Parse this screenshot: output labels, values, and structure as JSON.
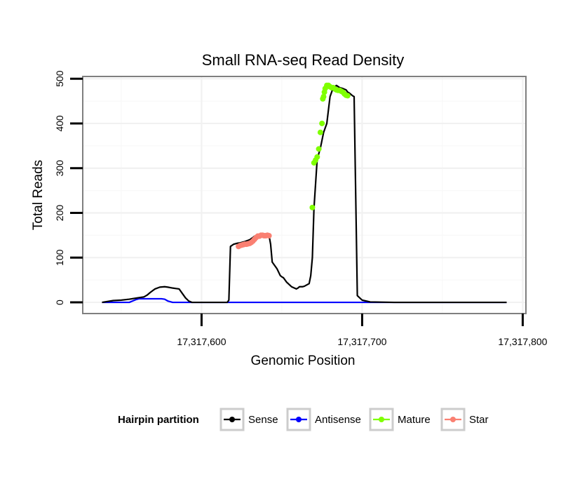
{
  "chart_data": {
    "type": "line",
    "title": "Small RNA-seq Read Density",
    "xlabel": "Genomic Position",
    "ylabel": "Total Reads",
    "xlim": [
      17317526,
      17317802
    ],
    "ylim": [
      -25,
      505
    ],
    "x_ticks": [
      17317600,
      17317700,
      17317800
    ],
    "x_tick_labels": [
      "17,317,600",
      "17,317,700",
      "17,317,800"
    ],
    "y_ticks": [
      0,
      100,
      200,
      300,
      400,
      500
    ],
    "y_tick_labels": [
      "0",
      "100",
      "200",
      "300",
      "400",
      "500"
    ],
    "grid": true,
    "legend": {
      "title": "Hairpin partition",
      "position": "bottom",
      "entries": [
        {
          "label": "Sense",
          "color": "#000000"
        },
        {
          "label": "Antisense",
          "color": "#0000ff"
        },
        {
          "label": "Mature",
          "color": "#7fff00"
        },
        {
          "label": "Star",
          "color": "#fa8072"
        }
      ]
    },
    "series": [
      {
        "name": "Sense",
        "color": "#000000",
        "x": [
          17317538,
          17317545,
          17317550,
          17317555,
          17317560,
          17317564,
          17317566,
          17317568,
          17317571,
          17317574,
          17317577,
          17317579,
          17317582,
          17317584,
          17317586,
          17317588,
          17317590,
          17317592,
          17317594,
          17317600,
          17317610,
          17317616,
          17317617,
          17317618,
          17317620,
          17317622,
          17317624,
          17317627,
          17317630,
          17317632,
          17317633,
          17317634,
          17317636,
          17317638,
          17317640,
          17317642,
          17317643,
          17317644,
          17317647,
          17317649,
          17317650,
          17317651,
          17317653,
          17317656,
          17317659,
          17317660,
          17317661,
          17317662,
          17317663,
          17317664,
          17317665,
          17317666,
          17317667,
          17317668,
          17317669,
          17317670,
          17317672,
          17317674,
          17317676,
          17317678,
          17317680,
          17317682,
          17317684,
          17317686,
          17317688,
          17317690,
          17317691,
          17317692,
          17317693,
          17317694,
          17317695,
          17317697,
          17317700,
          17317705,
          17317720,
          17317750,
          17317790
        ],
        "y": [
          0,
          4,
          5,
          7,
          10,
          12,
          16,
          22,
          30,
          34,
          35,
          34,
          32,
          31,
          30,
          20,
          10,
          3,
          0,
          0,
          0,
          0,
          5,
          125,
          130,
          132,
          133,
          136,
          140,
          145,
          148,
          150,
          150,
          150,
          150,
          150,
          130,
          90,
          75,
          60,
          57,
          55,
          45,
          35,
          30,
          32,
          35,
          35,
          35,
          36,
          38,
          40,
          42,
          60,
          100,
          210,
          320,
          345,
          380,
          400,
          460,
          480,
          485,
          480,
          478,
          475,
          470,
          468,
          465,
          462,
          460,
          15,
          5,
          1,
          0,
          0,
          0
        ]
      },
      {
        "name": "Antisense",
        "color": "#0000ff",
        "x": [
          17317538,
          17317555,
          17317557,
          17317559,
          17317561,
          17317575,
          17317577,
          17317579,
          17317582,
          17317600,
          17317700,
          17317790
        ],
        "y": [
          0,
          0,
          3,
          6,
          8,
          8,
          7,
          3,
          0,
          0,
          0,
          0
        ]
      },
      {
        "name": "Mature",
        "color": "#7fff00",
        "x": [
          17317669,
          17317670,
          17317671,
          17317672,
          17317673,
          17317674,
          17317675,
          17317675.5,
          17317676,
          17317676.5,
          17317677,
          17317678,
          17317679,
          17317680,
          17317681,
          17317682,
          17317683,
          17317684,
          17317685,
          17317686,
          17317687,
          17317688,
          17317689,
          17317690,
          17317691
        ],
        "y": [
          212,
          312,
          318,
          325,
          343,
          380,
          400,
          455,
          460,
          470,
          478,
          485,
          485,
          482,
          480,
          480,
          477,
          475,
          474,
          474,
          472,
          470,
          466,
          463,
          462
        ]
      },
      {
        "name": "Star",
        "color": "#fa8072",
        "x": [
          17317623,
          17317624,
          17317625,
          17317626,
          17317627,
          17317628,
          17317629,
          17317630,
          17317631,
          17317632,
          17317633,
          17317634,
          17317635,
          17317636,
          17317637,
          17317638,
          17317639,
          17317640,
          17317641,
          17317642
        ],
        "y": [
          125,
          127,
          128,
          129,
          130,
          130,
          131,
          132,
          134,
          137,
          141,
          145,
          148,
          148,
          150,
          150,
          149,
          149,
          150,
          149
        ]
      }
    ]
  }
}
